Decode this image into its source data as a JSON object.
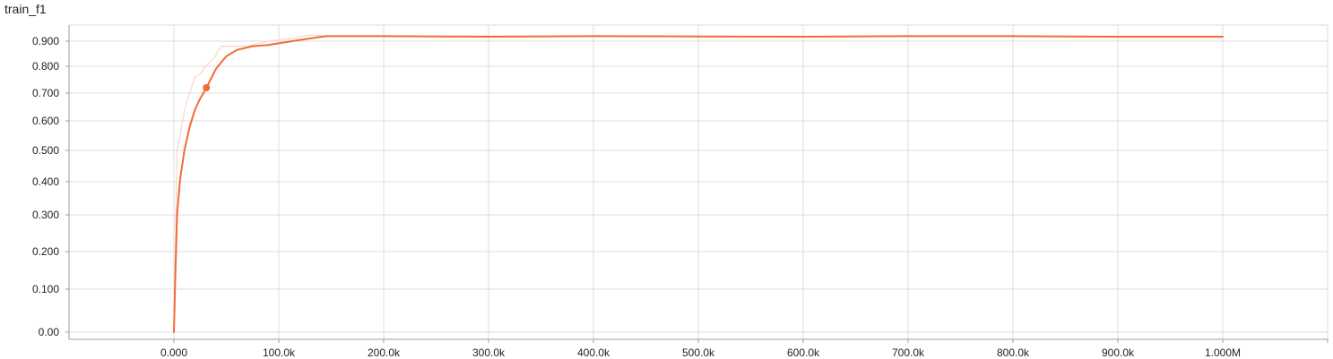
{
  "chart_data": {
    "type": "line",
    "title": "train_f1",
    "xlabel": "",
    "ylabel": "",
    "xlim": [
      -100000,
      1100000
    ],
    "x_ticks": [
      0,
      100000,
      200000,
      300000,
      400000,
      500000,
      600000,
      700000,
      800000,
      900000,
      1000000
    ],
    "x_tick_labels": [
      "0.000",
      "100.0k",
      "200.0k",
      "300.0k",
      "400.0k",
      "500.0k",
      "600.0k",
      "700.0k",
      "800.0k",
      "900.0k",
      "1.000M"
    ],
    "y_ticks": [
      0,
      0.1,
      0.2,
      0.3,
      0.4,
      0.5,
      0.6,
      0.7,
      0.8,
      0.9
    ],
    "y_tick_labels": [
      "0.00",
      "0.100",
      "0.200",
      "0.300",
      "0.400",
      "0.500",
      "0.600",
      "0.700",
      "0.800",
      "0.900"
    ],
    "y_scale": "nonlinear (sqrt-like, as drawn)",
    "grid": true,
    "colors": {
      "smoothed": "#f26b38",
      "raw": "#fbd6c8",
      "grid": "#dcdcdc"
    },
    "series": [
      {
        "role": "smoothed",
        "x": [
          0,
          1000,
          3000,
          6000,
          10000,
          15000,
          20000,
          25000,
          31000,
          40000,
          50000,
          60000,
          75000,
          90000,
          105000,
          120000,
          145000,
          200000,
          300000,
          400000,
          500000,
          600000,
          700000,
          800000,
          900000,
          1000000
        ],
        "y": [
          0.0,
          0.1,
          0.3,
          0.41,
          0.5,
          0.58,
          0.64,
          0.68,
          0.72,
          0.79,
          0.84,
          0.865,
          0.88,
          0.885,
          0.895,
          0.905,
          0.92,
          0.92,
          0.918,
          0.92,
          0.919,
          0.918,
          0.92,
          0.92,
          0.918,
          0.918
        ]
      },
      {
        "role": "raw",
        "x": [
          0,
          3000,
          6000,
          10000,
          15000,
          20000,
          25000,
          30000,
          38000,
          45000,
          55000,
          70000,
          90000,
          110000,
          130000,
          145000,
          200000,
          400000,
          600000,
          800000,
          1000000
        ],
        "y": [
          0.0,
          0.5,
          0.55,
          0.64,
          0.7,
          0.76,
          0.77,
          0.8,
          0.83,
          0.88,
          0.88,
          0.88,
          0.9,
          0.91,
          0.925,
          0.92,
          0.92,
          0.92,
          0.918,
          0.92,
          0.918
        ]
      }
    ],
    "highlight_point": {
      "x": 31000,
      "y": 0.72
    }
  }
}
